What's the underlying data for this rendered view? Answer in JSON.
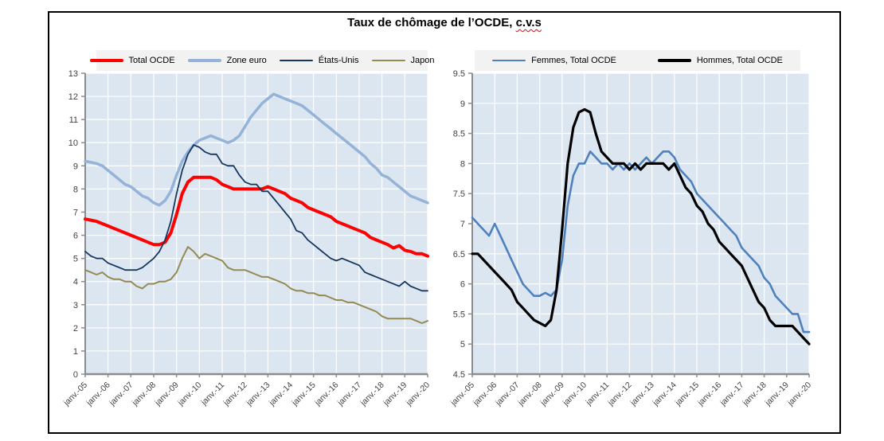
{
  "title": {
    "prefix": "Taux de chômage de l’OCDE, ",
    "suffix_misspelled": "c.v.s",
    "spellcheck_underline_color": "#ff0000"
  },
  "theme": {
    "plot_bg": "#dce6f1",
    "gridline": "#ffffff",
    "axis": "#8c8c8c",
    "tick_text": "#3f3f3f",
    "legend_bg": "#f2f2f2",
    "frame_border": "#000000"
  },
  "chart_data": [
    {
      "type": "line",
      "title": "",
      "xlabel": "",
      "ylabel": "",
      "x_range_years": [
        "janv.-05",
        "janv.-20"
      ],
      "sample_interval_years": 0.25,
      "grid": true,
      "legend_position": "top",
      "ylim": [
        0,
        13
      ],
      "ytick_step": 1,
      "ytick_labels": [
        "0",
        "1",
        "2",
        "3",
        "4",
        "5",
        "6",
        "7",
        "8",
        "9",
        "10",
        "11",
        "12",
        "13"
      ],
      "xtick_labels": [
        "janv.-05",
        "janv.-06",
        "janv.-07",
        "janv.-08",
        "janv.-09",
        "janv.-10",
        "janv.-11",
        "janv.-12",
        "janv.-13",
        "janv.-14",
        "janv.-15",
        "janv.-16",
        "janv.-17",
        "janv.-18",
        "janv.-19",
        "janv.-20"
      ],
      "series": [
        {
          "name": "Total OCDE",
          "color": "#ff0000",
          "stroke_width": 4,
          "values": [
            6.7,
            6.65,
            6.6,
            6.5,
            6.4,
            6.3,
            6.2,
            6.1,
            6.0,
            5.9,
            5.8,
            5.7,
            5.6,
            5.6,
            5.7,
            6.1,
            6.9,
            7.8,
            8.3,
            8.5,
            8.5,
            8.5,
            8.5,
            8.4,
            8.2,
            8.1,
            8.0,
            8.0,
            8.0,
            8.0,
            8.0,
            8.0,
            8.1,
            8.0,
            7.9,
            7.8,
            7.6,
            7.5,
            7.4,
            7.2,
            7.1,
            7.0,
            6.9,
            6.8,
            6.6,
            6.5,
            6.4,
            6.3,
            6.2,
            6.1,
            5.9,
            5.8,
            5.7,
            5.6,
            5.45,
            5.55,
            5.35,
            5.3,
            5.2,
            5.2,
            5.1
          ]
        },
        {
          "name": "Zone euro",
          "color": "#95b3d7",
          "stroke_width": 3.5,
          "values": [
            9.2,
            9.15,
            9.1,
            9.0,
            8.8,
            8.6,
            8.4,
            8.2,
            8.1,
            7.9,
            7.7,
            7.6,
            7.4,
            7.3,
            7.5,
            7.9,
            8.6,
            9.2,
            9.6,
            9.9,
            10.1,
            10.2,
            10.3,
            10.2,
            10.1,
            10.0,
            10.1,
            10.3,
            10.7,
            11.1,
            11.4,
            11.7,
            11.9,
            12.1,
            12.0,
            11.9,
            11.8,
            11.7,
            11.6,
            11.4,
            11.2,
            11.0,
            10.8,
            10.6,
            10.4,
            10.2,
            10.0,
            9.8,
            9.6,
            9.4,
            9.1,
            8.9,
            8.6,
            8.5,
            8.3,
            8.1,
            7.9,
            7.7,
            7.6,
            7.5,
            7.4
          ]
        },
        {
          "name": "États-Unis",
          "color": "#17375e",
          "stroke_width": 1.8,
          "values": [
            5.3,
            5.1,
            5.0,
            5.0,
            4.8,
            4.7,
            4.6,
            4.5,
            4.5,
            4.5,
            4.6,
            4.8,
            5.0,
            5.3,
            5.8,
            6.6,
            7.8,
            8.8,
            9.5,
            9.9,
            9.8,
            9.6,
            9.5,
            9.5,
            9.1,
            9.0,
            9.0,
            8.6,
            8.3,
            8.2,
            8.2,
            7.9,
            7.9,
            7.6,
            7.3,
            7.0,
            6.7,
            6.2,
            6.1,
            5.8,
            5.6,
            5.4,
            5.2,
            5.0,
            4.9,
            5.0,
            4.9,
            4.8,
            4.7,
            4.4,
            4.3,
            4.2,
            4.1,
            4.0,
            3.9,
            3.8,
            4.0,
            3.8,
            3.7,
            3.6,
            3.6
          ]
        },
        {
          "name": "Japon",
          "color": "#948a54",
          "stroke_width": 2,
          "values": [
            4.5,
            4.4,
            4.3,
            4.4,
            4.2,
            4.1,
            4.1,
            4.0,
            4.0,
            3.8,
            3.7,
            3.9,
            3.9,
            4.0,
            4.0,
            4.1,
            4.4,
            5.0,
            5.5,
            5.3,
            5.0,
            5.2,
            5.1,
            5.0,
            4.9,
            4.6,
            4.5,
            4.5,
            4.5,
            4.4,
            4.3,
            4.2,
            4.2,
            4.1,
            4.0,
            3.9,
            3.7,
            3.6,
            3.6,
            3.5,
            3.5,
            3.4,
            3.4,
            3.3,
            3.2,
            3.2,
            3.1,
            3.1,
            3.0,
            2.9,
            2.8,
            2.7,
            2.5,
            2.4,
            2.4,
            2.4,
            2.4,
            2.4,
            2.3,
            2.2,
            2.3
          ]
        }
      ]
    },
    {
      "type": "line",
      "title": "",
      "xlabel": "",
      "ylabel": "",
      "x_range_years": [
        "janv.-05",
        "janv.-20"
      ],
      "sample_interval_years": 0.25,
      "grid": true,
      "legend_position": "top",
      "ylim": [
        4.5,
        9.5
      ],
      "ytick_step": 0.5,
      "ytick_labels": [
        "4.5",
        "5",
        "5.5",
        "6",
        "6.5",
        "7",
        "7.5",
        "8",
        "8.5",
        "9",
        "9.5"
      ],
      "xtick_labels": [
        "janv.-05",
        "janv.-06",
        "janv.-07",
        "janv.-08",
        "janv.-09",
        "janv.-10",
        "janv.-11",
        "janv.-12",
        "janv.-13",
        "janv.-14",
        "janv.-15",
        "janv.-16",
        "janv.-17",
        "janv.-18",
        "janv.-19",
        "janv.-20"
      ],
      "series": [
        {
          "name": "Femmes, Total OCDE",
          "color": "#4f81bd",
          "stroke_width": 2.6,
          "values": [
            7.1,
            7.0,
            6.9,
            6.8,
            7.0,
            6.8,
            6.6,
            6.4,
            6.2,
            6.0,
            5.9,
            5.8,
            5.8,
            5.85,
            5.8,
            5.9,
            6.4,
            7.3,
            7.8,
            8.0,
            8.0,
            8.2,
            8.1,
            8.0,
            8.0,
            7.9,
            8.0,
            7.9,
            8.0,
            7.9,
            8.0,
            8.1,
            8.0,
            8.1,
            8.2,
            8.2,
            8.1,
            7.9,
            7.8,
            7.7,
            7.5,
            7.4,
            7.3,
            7.2,
            7.1,
            7.0,
            6.9,
            6.8,
            6.6,
            6.5,
            6.4,
            6.3,
            6.1,
            6.0,
            5.8,
            5.7,
            5.6,
            5.5,
            5.5,
            5.2,
            5.2
          ]
        },
        {
          "name": "Hommes, Total OCDE",
          "color": "#000000",
          "stroke_width": 3.2,
          "values": [
            6.5,
            6.5,
            6.4,
            6.3,
            6.2,
            6.1,
            6.0,
            5.9,
            5.7,
            5.6,
            5.5,
            5.4,
            5.35,
            5.3,
            5.4,
            5.9,
            6.9,
            8.0,
            8.6,
            8.85,
            8.9,
            8.85,
            8.5,
            8.2,
            8.1,
            8.0,
            8.0,
            8.0,
            7.9,
            8.0,
            7.9,
            8.0,
            8.0,
            8.0,
            8.0,
            7.9,
            8.0,
            7.8,
            7.6,
            7.5,
            7.3,
            7.2,
            7.0,
            6.9,
            6.7,
            6.6,
            6.5,
            6.4,
            6.3,
            6.1,
            5.9,
            5.7,
            5.6,
            5.4,
            5.3,
            5.3,
            5.3,
            5.3,
            5.2,
            5.1,
            5.0
          ]
        }
      ]
    }
  ]
}
